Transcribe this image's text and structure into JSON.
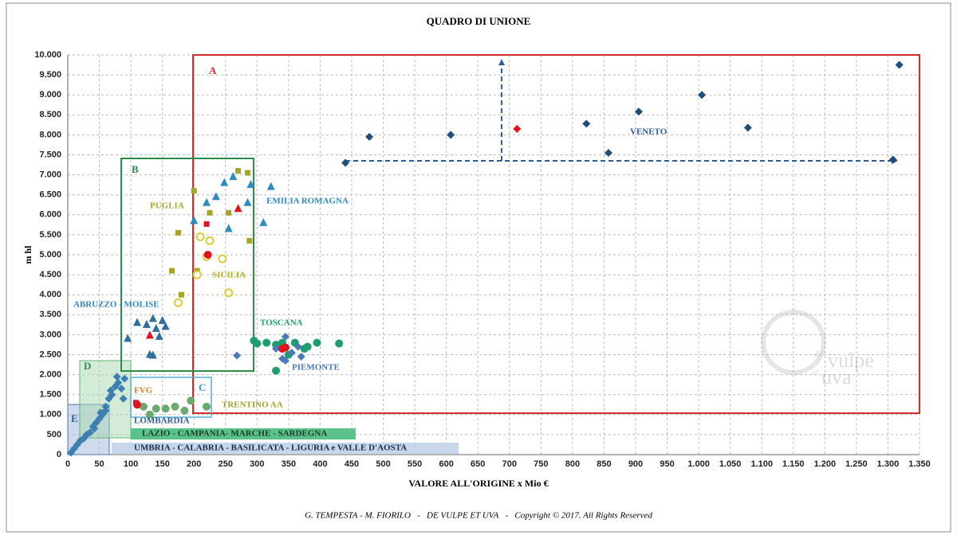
{
  "chart_data": {
    "type": "scatter",
    "title": "QUADRO DI UNIONE",
    "x_label": "VALORE ALL'ORIGINE  x Mio €",
    "y_label": "m hl",
    "footer": "G. TEMPESTA - M. FIORILO   -   DE VULPE ET UVA   -   Copyright © 2017. All Rights Reserved",
    "watermark": [
      "de",
      "vulpe",
      "et",
      "uva"
    ],
    "grid": true,
    "xlim": [
      0,
      1350
    ],
    "ylim": [
      0,
      10000
    ],
    "xticks": [
      0,
      50,
      100,
      150,
      200,
      250,
      300,
      350,
      400,
      450,
      500,
      550,
      600,
      650,
      700,
      750,
      800,
      850,
      900,
      950,
      {
        "value": 1000,
        "label": "1.000"
      },
      {
        "value": 1050,
        "label": "1.050"
      },
      {
        "value": 1100,
        "label": "1.100"
      },
      {
        "value": 1150,
        "label": "1.150"
      },
      {
        "value": 1200,
        "label": "1.200"
      },
      {
        "value": 1250,
        "label": "1.250"
      },
      {
        "value": 1300,
        "label": "1.300"
      },
      {
        "value": 1350,
        "label": "1.350"
      }
    ],
    "yticks": [
      0,
      500,
      {
        "value": 1000,
        "label": "1.000"
      },
      {
        "value": 1500,
        "label": "1.500"
      },
      {
        "value": 2000,
        "label": "2.000"
      },
      {
        "value": 2500,
        "label": "2.500"
      },
      {
        "value": 3000,
        "label": "3.000"
      },
      {
        "value": 3500,
        "label": "3.500"
      },
      {
        "value": 4000,
        "label": "4.000"
      },
      {
        "value": 4500,
        "label": "4.500"
      },
      {
        "value": 5000,
        "label": "5.000"
      },
      {
        "value": 5500,
        "label": "5.500"
      },
      {
        "value": 6000,
        "label": "6.000"
      },
      {
        "value": 6500,
        "label": "6.500"
      },
      {
        "value": 7000,
        "label": "7.000"
      },
      {
        "value": 7500,
        "label": "7.500"
      },
      {
        "value": 8000,
        "label": "8.000"
      },
      {
        "value": 8500,
        "label": "8.500"
      },
      {
        "value": 9000,
        "label": "9.000"
      },
      {
        "value": 9500,
        "label": "9.500"
      },
      {
        "value": 10000,
        "label": "10.000"
      }
    ],
    "annotations": [
      "A",
      "B",
      "C",
      "D",
      "E",
      "VENETO",
      "EMILIA ROMAGNA",
      "PUGLIA",
      "SICILIA",
      "ABRUZZO - MOLISE",
      "TOSCANA",
      "PIEMONTE",
      "FVG",
      "TRENTINO AA",
      "LOMBARDIA",
      "LAZIO - CAMPANIA- MARCHE - SARDEGNA",
      "UMBRIA - CALABRIA - BASILICATA - LIGURIA e VALLE D'AOSTA"
    ],
    "series": [
      {
        "color": "#1f4e79",
        "marker": "diamond",
        "x": [
          440,
          478,
          607,
          822,
          857,
          905,
          1005,
          1078,
          1308,
          1318
        ],
        "values": [
          7300,
          7950,
          8000,
          8280,
          7550,
          8580,
          9000,
          8180,
          7380,
          9750
        ]
      },
      {
        "color": "#2e8bc0",
        "marker": "triangle",
        "x": [
          200,
          220,
          235,
          248,
          262,
          285,
          290,
          310,
          322,
          255
        ],
        "values": [
          5850,
          6300,
          6450,
          6800,
          6950,
          6300,
          6750,
          5800,
          6700,
          5650
        ]
      },
      {
        "color": "#a5a52a",
        "marker": "square",
        "x": [
          175,
          165,
          180,
          200,
          225,
          255,
          270,
          285,
          288,
          205
        ],
        "values": [
          5550,
          4600,
          4000,
          6600,
          6050,
          6050,
          7100,
          7050,
          5350,
          4600
        ]
      },
      {
        "color": "#d8cc3a",
        "marker": "ring",
        "x": [
          175,
          205,
          210,
          220,
          245,
          255,
          225
        ],
        "values": [
          3800,
          4500,
          5450,
          4950,
          4900,
          4050,
          5350
        ]
      },
      {
        "color": "#2e6fa0",
        "marker": "triangle",
        "x": [
          95,
          110,
          125,
          130,
          135,
          140,
          150,
          145,
          155,
          135
        ],
        "values": [
          2900,
          3300,
          3250,
          2500,
          3400,
          3150,
          3350,
          2950,
          3200,
          2480
        ]
      },
      {
        "color": "#1e9e6e",
        "marker": "circle",
        "x": [
          295,
          300,
          315,
          330,
          340,
          360,
          375,
          395,
          430,
          330,
          350,
          380
        ],
        "values": [
          2850,
          2780,
          2800,
          2750,
          2800,
          2800,
          2650,
          2800,
          2780,
          2100,
          2500,
          2700
        ]
      },
      {
        "color": "#4a7ab8",
        "marker": "diamond",
        "x": [
          268,
          330,
          340,
          345,
          355,
          365,
          370,
          345
        ],
        "values": [
          2480,
          2650,
          2400,
          2950,
          2550,
          2700,
          2450,
          2350
        ]
      },
      {
        "color": "#3c7fb0",
        "marker": "diamond",
        "x": [
          5,
          10,
          15,
          20,
          25,
          30,
          35,
          40,
          45,
          50,
          55,
          60,
          65,
          70,
          75,
          80,
          85,
          90,
          60,
          42,
          52,
          68,
          78,
          88
        ],
        "values": [
          50,
          150,
          250,
          350,
          400,
          500,
          550,
          700,
          800,
          900,
          1000,
          1200,
          1400,
          1500,
          1700,
          1800,
          1650,
          1900,
          1100,
          650,
          1050,
          1600,
          1950,
          1400
        ]
      },
      {
        "color": "#6aaa6a",
        "marker": "circle",
        "x": [
          120,
          140,
          155,
          170,
          185,
          195,
          220,
          130
        ],
        "values": [
          1200,
          1150,
          1150,
          1200,
          1100,
          1350,
          1200,
          1000
        ]
      },
      {
        "color": "#e0141e",
        "marker": "diamond",
        "x": [
          712
        ],
        "values": [
          8150
        ]
      },
      {
        "color": "#e0141e",
        "marker": "circle",
        "x": [
          222,
          340,
          345,
          110
        ],
        "values": [
          5000,
          2650,
          2680,
          1250
        ]
      },
      {
        "color": "#e0141e",
        "marker": "triangle",
        "x": [
          270,
          130
        ],
        "values": [
          6150,
          2980
        ]
      },
      {
        "color": "#e0141e",
        "marker": "square",
        "x": [
          220,
          108
        ],
        "values": [
          5770,
          1300
        ]
      }
    ]
  }
}
